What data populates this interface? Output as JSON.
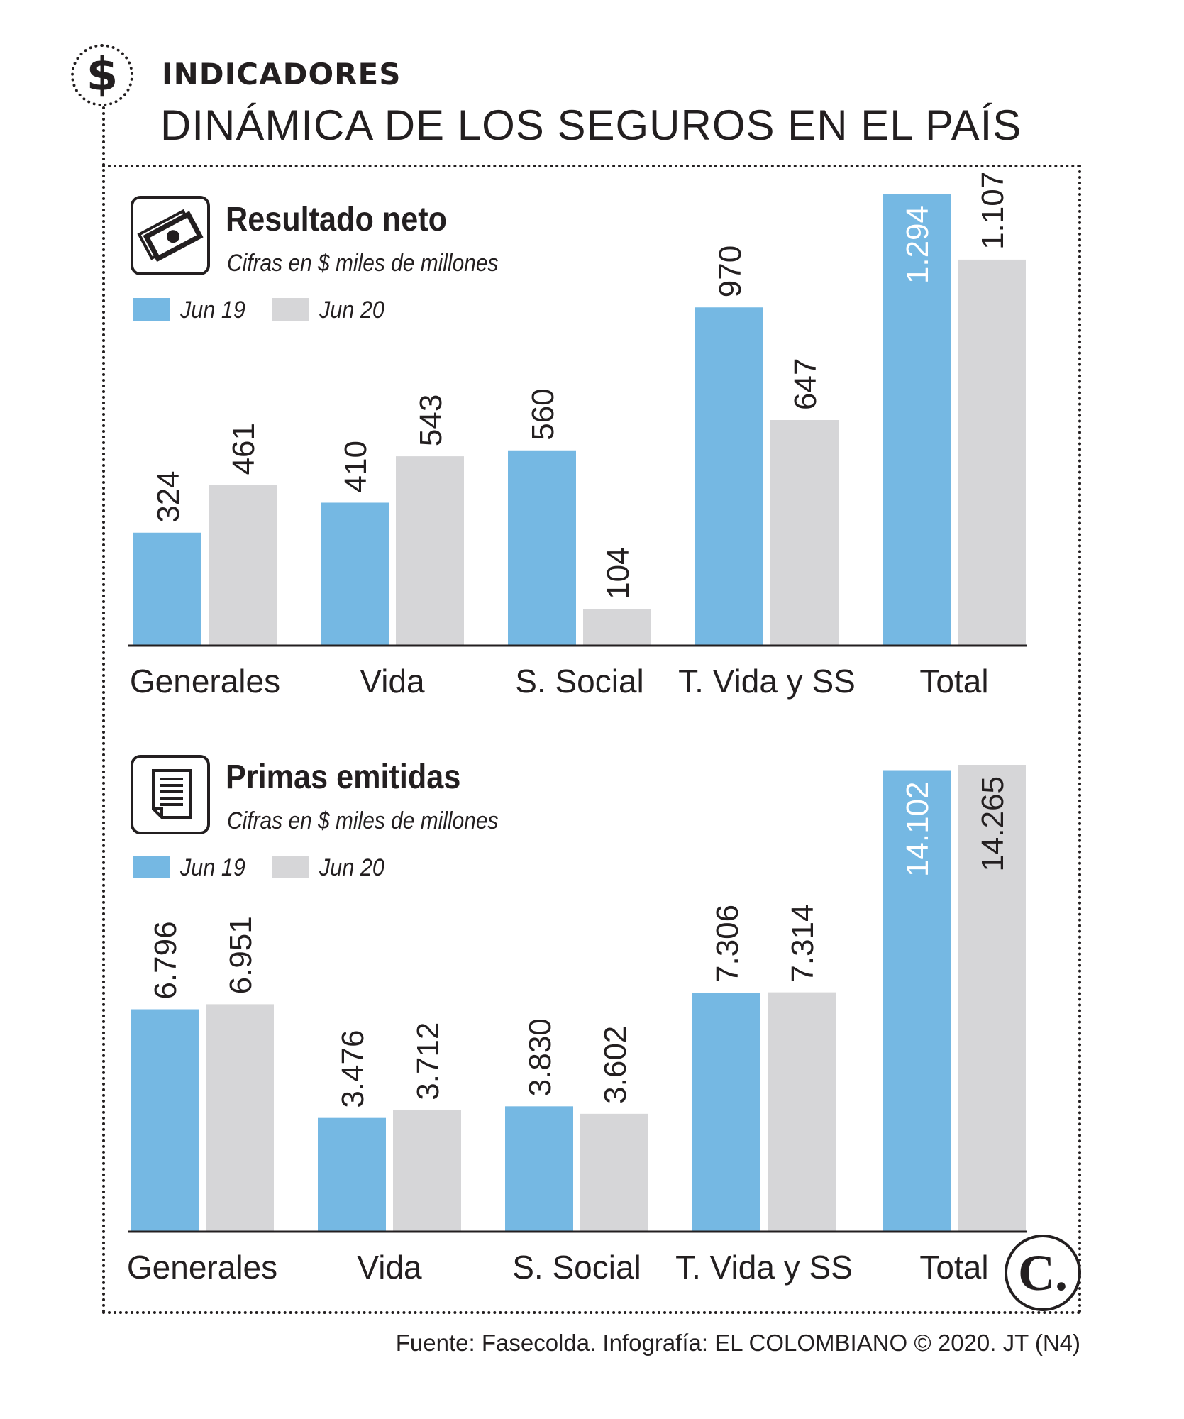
{
  "header": {
    "kicker": "INDICADORES",
    "headline": "DINÁMICA DE LOS SEGUROS EN EL PAÍS",
    "badge_icon": "dollar-icon"
  },
  "colors": {
    "jun19": "#75b8e3",
    "jun20": "#d6d6d8",
    "ink": "#231f20"
  },
  "chart_data": [
    {
      "type": "bar",
      "title": "Resultado neto",
      "subtitle": "Cifras en $ miles de millones",
      "icon": "money-bills-icon",
      "categories": [
        "Generales",
        "Vida",
        "S. Social",
        "T. Vida y SS",
        "Total"
      ],
      "series": [
        {
          "name": "Jun 19",
          "values": [
            324,
            410,
            560,
            970,
            1294
          ],
          "labels": [
            "324",
            "410",
            "560",
            "970",
            "1.294"
          ]
        },
        {
          "name": "Jun 20",
          "values": [
            461,
            543,
            104,
            647,
            1107
          ],
          "labels": [
            "461",
            "543",
            "104",
            "647",
            "1.107"
          ]
        }
      ],
      "ylim": [
        0,
        1294
      ]
    },
    {
      "type": "bar",
      "title": "Primas emitidas",
      "subtitle": "Cifras en $ miles de millones",
      "icon": "document-icon",
      "categories": [
        "Generales",
        "Vida",
        "S. Social",
        "T. Vida y SS",
        "Total"
      ],
      "series": [
        {
          "name": "Jun 19",
          "values": [
            6796,
            3476,
            3830,
            7306,
            14102
          ],
          "labels": [
            "6.796",
            "3.476",
            "3.830",
            "7.306",
            "14.102"
          ]
        },
        {
          "name": "Jun 20",
          "values": [
            6951,
            3712,
            3602,
            7314,
            14265
          ],
          "labels": [
            "6.951",
            "3.712",
            "3.602",
            "7.314",
            "14.265"
          ]
        }
      ],
      "ylim": [
        0,
        14265
      ]
    }
  ],
  "footer": {
    "source": "Fuente: Fasecolda. Infografía: EL COLOMBIANO © 2020. JT (N4)",
    "logo": "C."
  }
}
